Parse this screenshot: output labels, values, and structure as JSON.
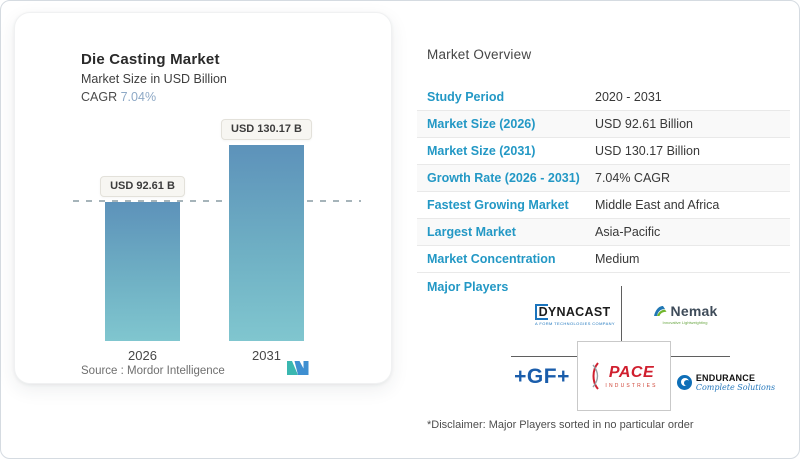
{
  "card": {
    "title": "Die Casting Market",
    "subtitle": "Market Size in USD Billion",
    "cagr_label": "CAGR",
    "cagr_value": "7.04%",
    "source_label": "Source :",
    "source_value": "Mordor Intelligence"
  },
  "chart_data": {
    "type": "bar",
    "title": "Die Casting Market",
    "subtitle": "Market Size in USD Billion",
    "unit": "USD Billion",
    "cagr": "7.04%",
    "categories": [
      "2026",
      "2031"
    ],
    "values": [
      92.61,
      130.17
    ],
    "bar_labels": [
      "USD 92.61 B",
      "USD 130.17 B"
    ],
    "ylim": [
      0,
      130.17
    ],
    "grid": false,
    "reference_line_at": 92.61,
    "bar_color_top": "#5d92ba",
    "bar_color_bottom": "#80c6cf"
  },
  "overview": {
    "heading": "Market Overview",
    "rows": [
      {
        "label": "Study Period",
        "value": "2020 - 2031"
      },
      {
        "label": "Market Size (2026)",
        "value": "USD 92.61 Billion"
      },
      {
        "label": "Market Size (2031)",
        "value": "USD 130.17 Billion"
      },
      {
        "label": "Growth Rate (2026 - 2031)",
        "value": "7.04% CAGR"
      },
      {
        "label": "Fastest Growing Market",
        "value": "Middle East and Africa"
      },
      {
        "label": "Largest Market",
        "value": "Asia-Pacific"
      },
      {
        "label": "Market Concentration",
        "value": "Medium"
      }
    ],
    "major_players_label": "Major Players",
    "players": [
      {
        "name": "DYNACAST",
        "tagline": "A FORM TECHNOLOGIES COMPANY"
      },
      {
        "name": "Nemak",
        "tagline": "Innovative Lightweighting"
      },
      {
        "name": "+GF+",
        "tagline": ""
      },
      {
        "name": "PACE",
        "tagline": "INDUSTRIES"
      },
      {
        "name": "ENDURANCE",
        "tagline": "Complete Solutions"
      }
    ],
    "disclaimer": "*Disclaimer: Major Players sorted in no particular order"
  },
  "colors": {
    "accent_blue": "#2398c5",
    "cagr_value_blue": "#8ea9c6",
    "bar_gradient_top": "#5d92ba",
    "bar_gradient_bottom": "#80c6cf",
    "mordor_teal": "#3ab7b0",
    "mordor_blue": "#3e8fd1"
  }
}
